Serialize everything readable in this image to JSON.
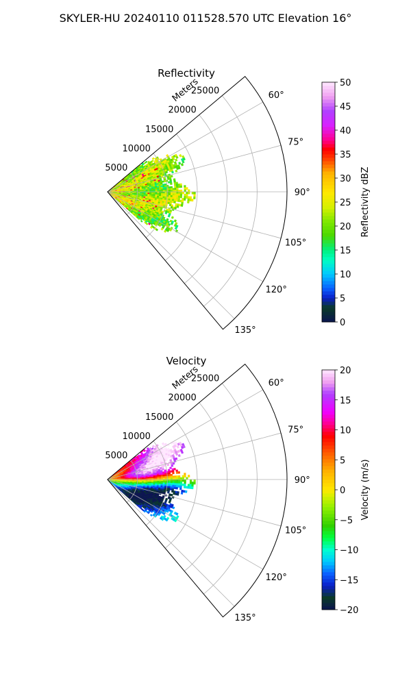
{
  "figure": {
    "suptitle": "SKYLER-HU  20240110  011528.570 UTC Elevation 16°"
  },
  "chart_data": [
    {
      "type": "heatmap",
      "subtype": "polar-sector",
      "title": "Reflectivity",
      "radial_label": "Meters",
      "r_ticks": [
        "5000",
        "10000",
        "15000",
        "20000",
        "25000"
      ],
      "r_tick_values": [
        5000,
        10000,
        15000,
        20000,
        25000
      ],
      "rmax": 30000,
      "theta_ticks": [
        "60°",
        "75°",
        "90°",
        "105°",
        "120°",
        "135°"
      ],
      "theta_tick_values": [
        60,
        75,
        90,
        105,
        120,
        135
      ],
      "theta_range": [
        50,
        140
      ],
      "data_extent": {
        "theta": [
          50,
          130
        ],
        "r_max": 14000
      },
      "colorbar": {
        "label": "Reflectivity dBZ",
        "min": 0,
        "max": 50,
        "ticks": [
          "0",
          "5",
          "10",
          "15",
          "20",
          "25",
          "30",
          "35",
          "40",
          "45",
          "50"
        ],
        "tick_values": [
          0,
          5,
          10,
          15,
          20,
          25,
          30,
          35,
          40,
          45,
          50
        ],
        "stops": [
          [
            0,
            "#0b1450"
          ],
          [
            3,
            "#0a3a28"
          ],
          [
            5,
            "#0a1ec8"
          ],
          [
            7,
            "#0a60ff"
          ],
          [
            10,
            "#00c8ff"
          ],
          [
            13,
            "#00ffc0"
          ],
          [
            15,
            "#00f080"
          ],
          [
            18,
            "#4ad800"
          ],
          [
            21,
            "#80e800"
          ],
          [
            24,
            "#d8f000"
          ],
          [
            27,
            "#ffe800"
          ],
          [
            31,
            "#ffb400"
          ],
          [
            34,
            "#ff4000"
          ],
          [
            36,
            "#ff0000"
          ],
          [
            38,
            "#ff0090"
          ],
          [
            41,
            "#d820ff"
          ],
          [
            44,
            "#b040ff"
          ],
          [
            47,
            "#f0a0f0"
          ],
          [
            50,
            "#ffe8ff"
          ]
        ]
      }
    },
    {
      "type": "heatmap",
      "subtype": "polar-sector",
      "title": "Velocity",
      "radial_label": "Meters",
      "r_ticks": [
        "5000",
        "10000",
        "15000",
        "20000",
        "25000"
      ],
      "r_tick_values": [
        5000,
        10000,
        15000,
        20000,
        25000
      ],
      "rmax": 30000,
      "theta_ticks": [
        "60°",
        "75°",
        "90°",
        "105°",
        "120°",
        "135°"
      ],
      "theta_tick_values": [
        60,
        75,
        90,
        105,
        120,
        135
      ],
      "theta_range": [
        50,
        140
      ],
      "data_extent": {
        "theta": [
          50,
          130
        ],
        "r_max": 14000
      },
      "colorbar": {
        "label": "Velocity (m/s)",
        "min": -20,
        "max": 20,
        "ticks": [
          "−20",
          "−15",
          "−10",
          "−5",
          "0",
          "5",
          "10",
          "15",
          "20"
        ],
        "tick_values": [
          -20,
          -15,
          -10,
          -5,
          0,
          5,
          10,
          15,
          20
        ],
        "stops": [
          [
            -20,
            "#0b1450"
          ],
          [
            -18,
            "#0a3a28"
          ],
          [
            -16,
            "#0a1ec8"
          ],
          [
            -14,
            "#0a60ff"
          ],
          [
            -12,
            "#00c8ff"
          ],
          [
            -10,
            "#00ffd0"
          ],
          [
            -8,
            "#00ff40"
          ],
          [
            -6,
            "#30d000"
          ],
          [
            -3,
            "#90f000"
          ],
          [
            -1,
            "#d8f000"
          ],
          [
            0,
            "#ffe800"
          ],
          [
            3,
            "#ffb400"
          ],
          [
            6,
            "#ff6000"
          ],
          [
            9,
            "#ff0000"
          ],
          [
            11,
            "#ff0090"
          ],
          [
            13,
            "#f000ff"
          ],
          [
            16,
            "#b040ff"
          ],
          [
            18,
            "#f0a0f0"
          ],
          [
            20,
            "#ffe8ff"
          ]
        ]
      }
    }
  ]
}
